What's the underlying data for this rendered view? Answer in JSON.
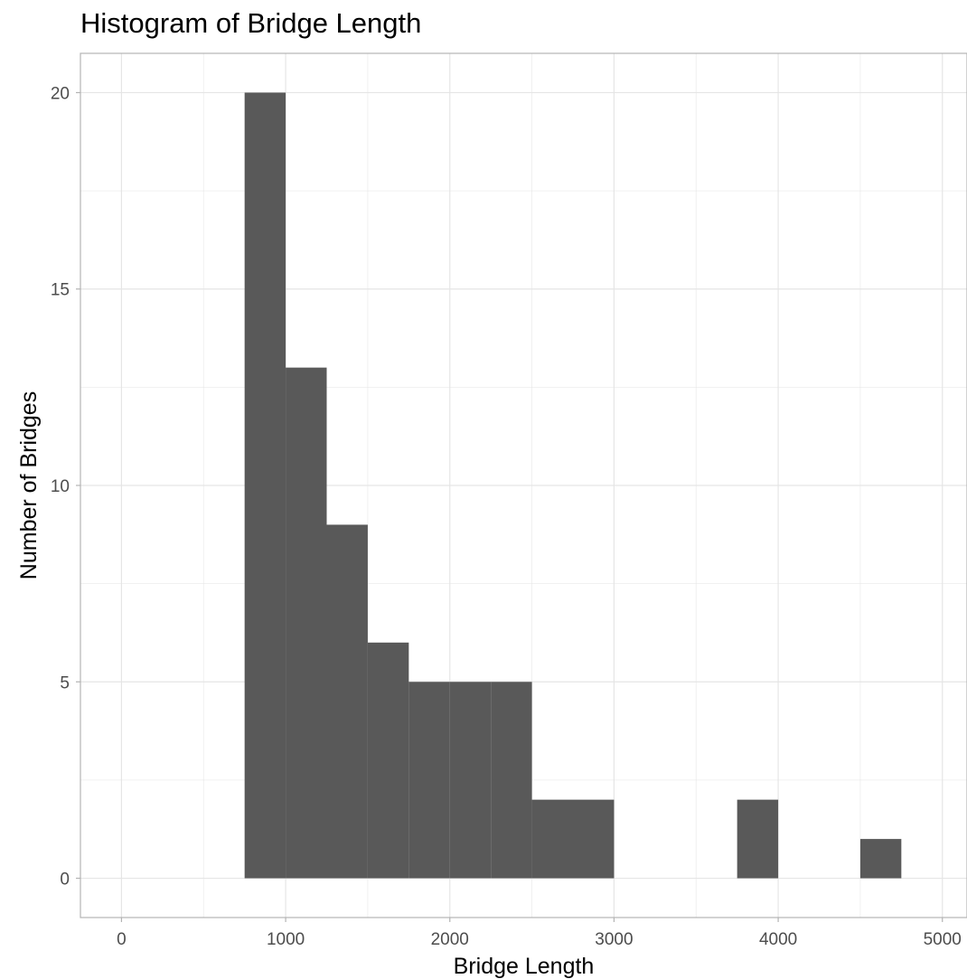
{
  "chart_data": {
    "type": "histogram",
    "title": "Histogram of Bridge Length",
    "xlabel": "Bridge Length",
    "ylabel": "Number of Bridges",
    "xlim": [
      -250,
      5150
    ],
    "ylim": [
      -1,
      21
    ],
    "x_ticks": [
      0,
      1000,
      2000,
      3000,
      4000,
      5000
    ],
    "x_tick_labels": [
      "0",
      "1000",
      "2000",
      "3000",
      "4000",
      "5000"
    ],
    "y_ticks": [
      0,
      5,
      10,
      15,
      20
    ],
    "y_tick_labels": [
      "0",
      "5",
      "10",
      "15",
      "20"
    ],
    "bin_width": 250,
    "bins": [
      {
        "x_start": 750,
        "x_end": 1000,
        "count": 20
      },
      {
        "x_start": 1000,
        "x_end": 1250,
        "count": 13
      },
      {
        "x_start": 1250,
        "x_end": 1500,
        "count": 9
      },
      {
        "x_start": 1500,
        "x_end": 1750,
        "count": 6
      },
      {
        "x_start": 1750,
        "x_end": 2000,
        "count": 5
      },
      {
        "x_start": 2000,
        "x_end": 2250,
        "count": 5
      },
      {
        "x_start": 2250,
        "x_end": 2500,
        "count": 5
      },
      {
        "x_start": 2500,
        "x_end": 2750,
        "count": 2
      },
      {
        "x_start": 2750,
        "x_end": 3000,
        "count": 2
      },
      {
        "x_start": 3000,
        "x_end": 3250,
        "count": 0
      },
      {
        "x_start": 3250,
        "x_end": 3500,
        "count": 0
      },
      {
        "x_start": 3500,
        "x_end": 3750,
        "count": 0
      },
      {
        "x_start": 3750,
        "x_end": 4000,
        "count": 2
      },
      {
        "x_start": 4000,
        "x_end": 4250,
        "count": 0
      },
      {
        "x_start": 4250,
        "x_end": 4500,
        "count": 0
      },
      {
        "x_start": 4500,
        "x_end": 4750,
        "count": 1
      }
    ],
    "bar_color": "#595959",
    "grid": true,
    "grid_color": "#e5e5e5",
    "panel_border_color": "#b3b3b3",
    "legend": "none"
  }
}
